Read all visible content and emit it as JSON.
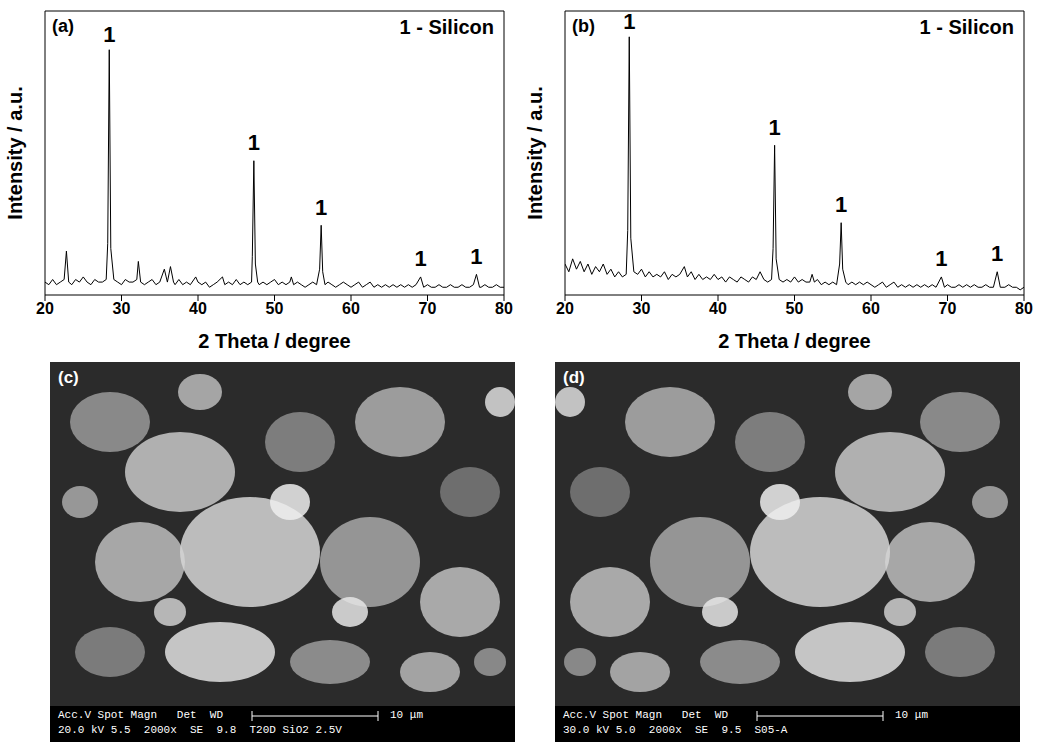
{
  "chart_data": [
    {
      "type": "line",
      "panel": "(a)",
      "xlabel": "2 Theta / degree",
      "ylabel": "Intensity / a.u.",
      "color": "#000000",
      "tick_labels": "x",
      "xlim": [
        20,
        80
      ],
      "xticks": [
        20,
        30,
        40,
        50,
        60,
        70,
        80
      ],
      "ylim": [
        0,
        110
      ],
      "x": [
        20,
        20.5,
        21,
        21.5,
        22,
        22.5,
        22.8,
        23.1,
        23.5,
        24,
        24.5,
        25,
        25.5,
        26,
        26.5,
        27,
        27.5,
        28,
        28.2,
        28.4,
        28.6,
        29,
        29.5,
        30,
        30.5,
        31,
        31.5,
        32,
        32.2,
        32.5,
        33,
        33.5,
        34,
        34.5,
        35,
        35.6,
        36,
        36.4,
        36.8,
        37,
        37.5,
        38,
        38.5,
        39,
        39.7,
        40,
        40.5,
        41,
        41.5,
        42,
        42.5,
        43.2,
        43.5,
        44,
        44.5,
        45,
        45.5,
        46,
        46.5,
        47,
        47.1,
        47.3,
        47.5,
        47.8,
        48,
        48.5,
        49,
        49.5,
        50,
        50.5,
        51,
        51.5,
        52,
        52.2,
        52.5,
        53,
        53.5,
        54,
        54.5,
        55,
        55.5,
        55.9,
        56.1,
        56.3,
        56.6,
        57,
        57.5,
        58,
        58.5,
        59,
        59.5,
        60,
        60.5,
        61,
        61.5,
        62,
        62.5,
        63,
        63.5,
        64,
        64.5,
        65,
        65.5,
        66,
        66.5,
        67,
        67.5,
        68,
        68.5,
        69.1,
        69.5,
        70,
        70.5,
        71,
        71.5,
        72,
        72.5,
        73,
        73.5,
        74,
        74.5,
        75,
        75.5,
        76,
        76.4,
        76.8,
        77,
        77.5,
        78,
        78.5,
        79,
        79.5,
        80
      ],
      "values": [
        5,
        4,
        6,
        4,
        5,
        6,
        17,
        5,
        4,
        6,
        5,
        7,
        5,
        4,
        6,
        5,
        5,
        6,
        20,
        95,
        18,
        6,
        5,
        4,
        6,
        5,
        5,
        6,
        13,
        5,
        4,
        5,
        6,
        4,
        5,
        10,
        5,
        11,
        5,
        4,
        6,
        4,
        5,
        4,
        7,
        5,
        4,
        5,
        3,
        4,
        5,
        7,
        4,
        5,
        4,
        6,
        4,
        5,
        4,
        5,
        15,
        52,
        12,
        5,
        4,
        5,
        4,
        5,
        6,
        4,
        5,
        4,
        5,
        7,
        4,
        5,
        4,
        3,
        4,
        5,
        4,
        10,
        27,
        9,
        4,
        5,
        4,
        3,
        4,
        5,
        4,
        3,
        4,
        5,
        3,
        4,
        5,
        3,
        4,
        3,
        4,
        3,
        4,
        3,
        4,
        3,
        4,
        3,
        4,
        7,
        3,
        4,
        3,
        3,
        4,
        3,
        3,
        4,
        3,
        3,
        4,
        3,
        3,
        4,
        8,
        3,
        3,
        4,
        3,
        3,
        4,
        3,
        3
      ],
      "annotations": [
        {
          "text": "1 - Silicon"
        },
        {
          "x": 28.4,
          "y": 97,
          "text": "1"
        },
        {
          "x": 47.3,
          "y": 55,
          "text": "1"
        },
        {
          "x": 56.1,
          "y": 30,
          "text": "1"
        },
        {
          "x": 69.1,
          "y": 10,
          "text": "1"
        },
        {
          "x": 76.4,
          "y": 11,
          "text": "1"
        }
      ]
    },
    {
      "type": "line",
      "panel": "(b)",
      "xlabel": "2 Theta / degree",
      "ylabel": "Intensity / a.u.",
      "color": "#000000",
      "tick_labels": "x",
      "xlim": [
        20,
        80
      ],
      "xticks": [
        20,
        30,
        40,
        50,
        60,
        70,
        80
      ],
      "ylim": [
        0,
        110
      ],
      "x": [
        20,
        20.5,
        21,
        21.5,
        22,
        22.5,
        23,
        23.5,
        24,
        24.5,
        25,
        25.5,
        26,
        26.5,
        27,
        27.5,
        28,
        28.2,
        28.4,
        28.6,
        29,
        29.5,
        30,
        30.5,
        31,
        31.5,
        32,
        32.5,
        33,
        33.5,
        34,
        34.5,
        35,
        35.6,
        36,
        36.5,
        37,
        37.5,
        38,
        38.5,
        39,
        39.5,
        40,
        40.5,
        41,
        41.5,
        42,
        42.5,
        43,
        43.5,
        44,
        44.5,
        45,
        45.5,
        46,
        46.5,
        47,
        47.2,
        47.4,
        47.6,
        48,
        48.5,
        49,
        49.5,
        50,
        50.5,
        51,
        51.5,
        52,
        52.3,
        52.6,
        53,
        53.5,
        54,
        54.5,
        55,
        55.5,
        55.9,
        56.1,
        56.3,
        56.7,
        57,
        57.5,
        58,
        58.5,
        59,
        59.5,
        60,
        60.5,
        61,
        61.5,
        62,
        62.5,
        63,
        63.5,
        64,
        64.5,
        65,
        65.5,
        66,
        66.5,
        67,
        67.5,
        68,
        68.5,
        69.2,
        69.6,
        70,
        70.5,
        71,
        71.5,
        72,
        72.5,
        73,
        73.5,
        74,
        74.5,
        75,
        75.5,
        76,
        76.5,
        76.9,
        77.5,
        78,
        78.5,
        79,
        79.5,
        80
      ],
      "values": [
        12,
        9,
        14,
        10,
        13,
        9,
        12,
        8,
        11,
        9,
        12,
        8,
        10,
        7,
        9,
        7,
        8,
        25,
        100,
        22,
        9,
        8,
        10,
        7,
        9,
        7,
        8,
        7,
        9,
        6,
        8,
        7,
        8,
        11,
        7,
        9,
        6,
        8,
        6,
        7,
        6,
        8,
        6,
        7,
        5,
        7,
        6,
        5,
        7,
        6,
        5,
        7,
        6,
        9,
        6,
        5,
        6,
        18,
        58,
        14,
        6,
        5,
        6,
        5,
        7,
        5,
        6,
        5,
        5,
        8,
        5,
        6,
        4,
        5,
        4,
        5,
        4,
        12,
        28,
        10,
        5,
        4,
        5,
        4,
        5,
        4,
        5,
        4,
        3,
        4,
        5,
        3,
        4,
        5,
        3,
        4,
        3,
        4,
        3,
        4,
        3,
        4,
        3,
        4,
        3,
        7,
        3,
        4,
        3,
        3,
        4,
        3,
        4,
        3,
        4,
        3,
        3,
        4,
        3,
        3,
        9,
        3,
        3,
        4,
        3,
        3,
        2,
        3
      ],
      "annotations": [
        {
          "text": "1 - Silicon"
        },
        {
          "x": 28.4,
          "y": 102,
          "text": "1"
        },
        {
          "x": 47.4,
          "y": 61,
          "text": "1"
        },
        {
          "x": 56.1,
          "y": 31,
          "text": "1"
        },
        {
          "x": 69.2,
          "y": 10,
          "text": "1"
        },
        {
          "x": 76.5,
          "y": 12,
          "text": "1"
        }
      ]
    }
  ],
  "images": [
    {
      "panel": "(c)",
      "info_header": "Acc.V Spot Magn   Det  WD",
      "info_values": "20.0 kV 5.5  2000x  SE  9.8  T20D SiO2 2.5V",
      "scale_bar": "10 μm"
    },
    {
      "panel": "(d)",
      "info_header": "Acc.V Spot Magn   Det  WD",
      "info_values": "30.0 kV 5.0  2000x  SE  9.5  S05-A",
      "scale_bar": "10 μm"
    }
  ]
}
